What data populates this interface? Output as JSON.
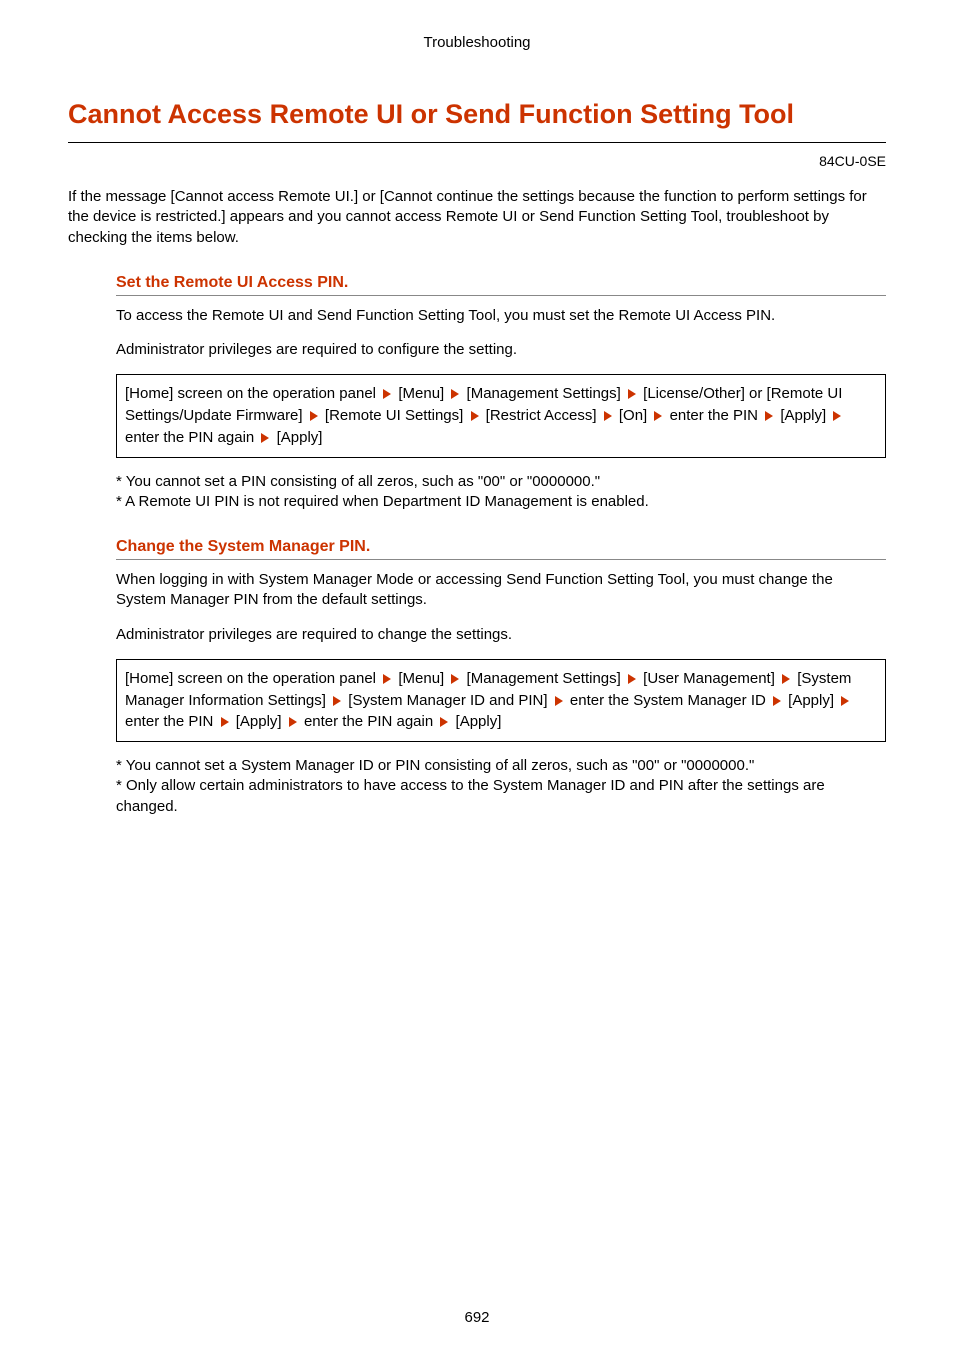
{
  "header": "Troubleshooting",
  "title": "Cannot Access Remote UI or Send Function Setting Tool",
  "doc_code": "84CU-0SE",
  "intro": "If the message [Cannot access Remote UI.] or [Cannot continue the settings because the function to perform settings for the device is restricted.] appears and you cannot access Remote UI or Send Function Setting Tool, troubleshoot by checking the items below.",
  "section1": {
    "heading": "Set the Remote UI Access PIN.",
    "p1": "To access the Remote UI and Send Function Setting Tool, you must set the Remote UI Access PIN.",
    "p2": "Administrator privileges are required to configure the setting.",
    "nav": [
      "[Home] screen on the operation panel",
      "[Menu]",
      "[Management Settings]",
      "[License/Other] or [Remote UI Settings/Update Firmware]",
      "[Remote UI Settings]",
      "[Restrict Access]",
      "[On]",
      "enter the PIN",
      "[Apply]",
      "enter the PIN again",
      "[Apply]"
    ],
    "n1": "* You cannot set a PIN consisting of all zeros, such as \"00\" or \"0000000.\"",
    "n2": "* A Remote UI PIN is not required when Department ID Management is enabled."
  },
  "section2": {
    "heading": "Change the System Manager PIN.",
    "p1": "When logging in with System Manager Mode or accessing Send Function Setting Tool, you must change the System Manager PIN from the default settings.",
    "p2": "Administrator privileges are required to change the settings.",
    "nav": [
      "[Home] screen on the operation panel",
      "[Menu]",
      "[Management Settings]",
      "[User Management]",
      "[System Manager Information Settings]",
      "[System Manager ID and PIN]",
      "enter the System Manager ID",
      "[Apply]",
      "enter the PIN",
      "[Apply]",
      "enter the PIN again",
      "[Apply]"
    ],
    "n1": "* You cannot set a System Manager ID or PIN consisting of all zeros, such as \"00\" or \"0000000.\"",
    "n2": "* Only allow certain administrators to have access to the System Manager ID and PIN after the settings are changed."
  },
  "page_number": "692",
  "colors": {
    "accent": "#cc3300",
    "text": "#000000",
    "border": "#000000",
    "sub_border": "#888888"
  }
}
